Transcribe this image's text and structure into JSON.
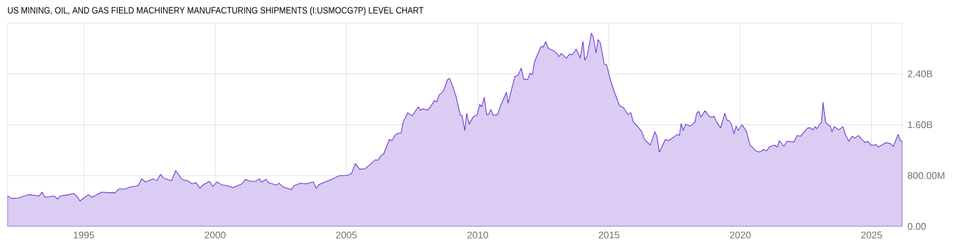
{
  "chart_data": {
    "type": "area",
    "title": "US MINING, OIL, AND GAS FIELD MACHINERY MANUFACTURING SHIPMENTS (I:USMOCG7P) LEVEL CHART",
    "xlim": [
      1992.09,
      2026.17
    ],
    "xticks": [
      1995,
      2000,
      2005,
      2010,
      2015,
      2020,
      2025
    ],
    "ylim": [
      0,
      3200000000
    ],
    "yticks": [
      {
        "value": 0,
        "label": "0.00"
      },
      {
        "value": 800000000,
        "label": "800.00M"
      },
      {
        "value": 1600000000,
        "label": "1.60B"
      },
      {
        "value": 2400000000,
        "label": "2.40B"
      }
    ],
    "grid": true,
    "series": [
      {
        "color": "#6a35cf",
        "x": [
          1992.09,
          1992.25,
          1992.51,
          1992.9,
          1993.3,
          1993.41,
          1993.52,
          1993.87,
          1994.0,
          1994.1,
          1994.44,
          1994.6,
          1994.75,
          1994.85,
          1995.17,
          1995.32,
          1995.67,
          1996.02,
          1996.2,
          1996.33,
          1996.59,
          1996.76,
          1997.07,
          1997.2,
          1997.34,
          1997.64,
          1997.78,
          1997.92,
          1998.04,
          1998.34,
          1998.5,
          1998.74,
          1999.0,
          1999.11,
          1999.27,
          1999.42,
          1999.53,
          1999.79,
          1999.91,
          2000.08,
          2000.23,
          2000.58,
          2000.67,
          2001.02,
          2001.15,
          2001.33,
          2001.55,
          2001.68,
          2001.77,
          2001.94,
          2002.03,
          2002.34,
          2002.43,
          2002.6,
          2002.91,
          2003.0,
          2003.26,
          2003.44,
          2003.74,
          2003.85,
          2003.96,
          2004.18,
          2004.44,
          2004.62,
          2004.75,
          2005.02,
          2005.19,
          2005.34,
          2005.5,
          2005.72,
          2005.94,
          2006.11,
          2006.2,
          2006.33,
          2006.42,
          2006.53,
          2006.64,
          2006.73,
          2006.86,
          2006.99,
          2007.08,
          2007.16,
          2007.34,
          2007.5,
          2007.74,
          2007.82,
          2007.93,
          2008.09,
          2008.2,
          2008.35,
          2008.44,
          2008.53,
          2008.66,
          2008.74,
          2008.85,
          2008.92,
          2009.01,
          2009.18,
          2009.34,
          2009.4,
          2009.51,
          2009.58,
          2009.67,
          2009.84,
          2009.97,
          2010.08,
          2010.15,
          2010.25,
          2010.34,
          2010.41,
          2010.5,
          2010.59,
          2010.76,
          2010.85,
          2011.03,
          2011.09,
          2011.16,
          2011.29,
          2011.42,
          2011.54,
          2011.66,
          2011.75,
          2011.9,
          2011.99,
          2012.08,
          2012.17,
          2012.41,
          2012.49,
          2012.59,
          2012.69,
          2012.87,
          2013.03,
          2013.09,
          2013.18,
          2013.38,
          2013.5,
          2013.59,
          2013.75,
          2013.9,
          2014.01,
          2014.08,
          2014.16,
          2014.33,
          2014.4,
          2014.51,
          2014.58,
          2014.67,
          2014.82,
          2014.91,
          2015.02,
          2015.15,
          2015.4,
          2015.55,
          2015.72,
          2015.83,
          2015.92,
          2016.1,
          2016.25,
          2016.35,
          2016.57,
          2016.75,
          2016.82,
          2016.92,
          2017.08,
          2017.15,
          2017.27,
          2017.61,
          2017.68,
          2017.75,
          2017.83,
          2017.92,
          2018.09,
          2018.27,
          2018.34,
          2018.42,
          2018.5,
          2018.66,
          2018.84,
          2019.01,
          2019.1,
          2019.25,
          2019.41,
          2019.5,
          2019.58,
          2019.67,
          2019.76,
          2019.84,
          2019.92,
          2020.07,
          2020.24,
          2020.37,
          2020.59,
          2020.75,
          2020.87,
          2021.01,
          2021.1,
          2021.3,
          2021.41,
          2021.49,
          2021.66,
          2021.78,
          2022.04,
          2022.17,
          2022.3,
          2022.44,
          2022.57,
          2022.68,
          2022.77,
          2022.85,
          2022.92,
          2023.05,
          2023.09,
          2023.15,
          2023.25,
          2023.36,
          2023.42,
          2023.49,
          2023.58,
          2023.75,
          2023.91,
          2024.01,
          2024.14,
          2024.26,
          2024.36,
          2024.5,
          2024.63,
          2024.76,
          2024.85,
          2024.98,
          2025.11,
          2025.16,
          2025.26,
          2025.55,
          2025.73,
          2025.83,
          2026.01,
          2026.1,
          2026.17
        ],
        "values": [
          480000000,
          440000000,
          450000000,
          500000000,
          480000000,
          540000000,
          460000000,
          480000000,
          430000000,
          480000000,
          500000000,
          520000000,
          470000000,
          400000000,
          500000000,
          460000000,
          540000000,
          530000000,
          530000000,
          590000000,
          590000000,
          620000000,
          640000000,
          750000000,
          700000000,
          750000000,
          720000000,
          820000000,
          760000000,
          720000000,
          880000000,
          740000000,
          710000000,
          670000000,
          690000000,
          600000000,
          650000000,
          710000000,
          630000000,
          700000000,
          660000000,
          630000000,
          610000000,
          670000000,
          740000000,
          710000000,
          710000000,
          750000000,
          700000000,
          740000000,
          690000000,
          650000000,
          680000000,
          620000000,
          580000000,
          640000000,
          680000000,
          670000000,
          700000000,
          600000000,
          660000000,
          700000000,
          740000000,
          780000000,
          800000000,
          800000000,
          830000000,
          990000000,
          900000000,
          910000000,
          990000000,
          1050000000,
          1040000000,
          1120000000,
          1140000000,
          1260000000,
          1370000000,
          1350000000,
          1440000000,
          1470000000,
          1470000000,
          1640000000,
          1790000000,
          1740000000,
          1880000000,
          1830000000,
          1850000000,
          1830000000,
          1880000000,
          1980000000,
          1960000000,
          2070000000,
          2110000000,
          2180000000,
          2310000000,
          2330000000,
          2250000000,
          2040000000,
          1750000000,
          1750000000,
          1510000000,
          1780000000,
          1610000000,
          1730000000,
          1750000000,
          1920000000,
          1880000000,
          2030000000,
          1760000000,
          1760000000,
          1840000000,
          1750000000,
          1760000000,
          1880000000,
          2050000000,
          2110000000,
          1940000000,
          2160000000,
          2360000000,
          2380000000,
          2490000000,
          2320000000,
          2310000000,
          2410000000,
          2390000000,
          2600000000,
          2830000000,
          2820000000,
          2910000000,
          2800000000,
          2770000000,
          2720000000,
          2670000000,
          2720000000,
          2650000000,
          2710000000,
          2700000000,
          2790000000,
          2650000000,
          2910000000,
          2620000000,
          2670000000,
          3040000000,
          2980000000,
          2730000000,
          2940000000,
          2890000000,
          2550000000,
          2540000000,
          2360000000,
          2180000000,
          1900000000,
          1870000000,
          1760000000,
          1790000000,
          1650000000,
          1570000000,
          1490000000,
          1370000000,
          1280000000,
          1490000000,
          1420000000,
          1170000000,
          1310000000,
          1370000000,
          1350000000,
          1450000000,
          1430000000,
          1620000000,
          1510000000,
          1610000000,
          1580000000,
          1640000000,
          1780000000,
          1810000000,
          1720000000,
          1820000000,
          1720000000,
          1730000000,
          1640000000,
          1550000000,
          1780000000,
          1670000000,
          1660000000,
          1600000000,
          1460000000,
          1580000000,
          1510000000,
          1600000000,
          1490000000,
          1280000000,
          1190000000,
          1170000000,
          1210000000,
          1190000000,
          1250000000,
          1280000000,
          1250000000,
          1350000000,
          1260000000,
          1340000000,
          1330000000,
          1430000000,
          1420000000,
          1490000000,
          1550000000,
          1550000000,
          1520000000,
          1570000000,
          1540000000,
          1620000000,
          1630000000,
          1950000000,
          1640000000,
          1590000000,
          1590000000,
          1490000000,
          1570000000,
          1520000000,
          1570000000,
          1440000000,
          1340000000,
          1420000000,
          1390000000,
          1430000000,
          1370000000,
          1320000000,
          1340000000,
          1280000000,
          1280000000,
          1290000000,
          1250000000,
          1320000000,
          1300000000,
          1260000000,
          1450000000,
          1350000000,
          1340000000
        ]
      }
    ]
  }
}
